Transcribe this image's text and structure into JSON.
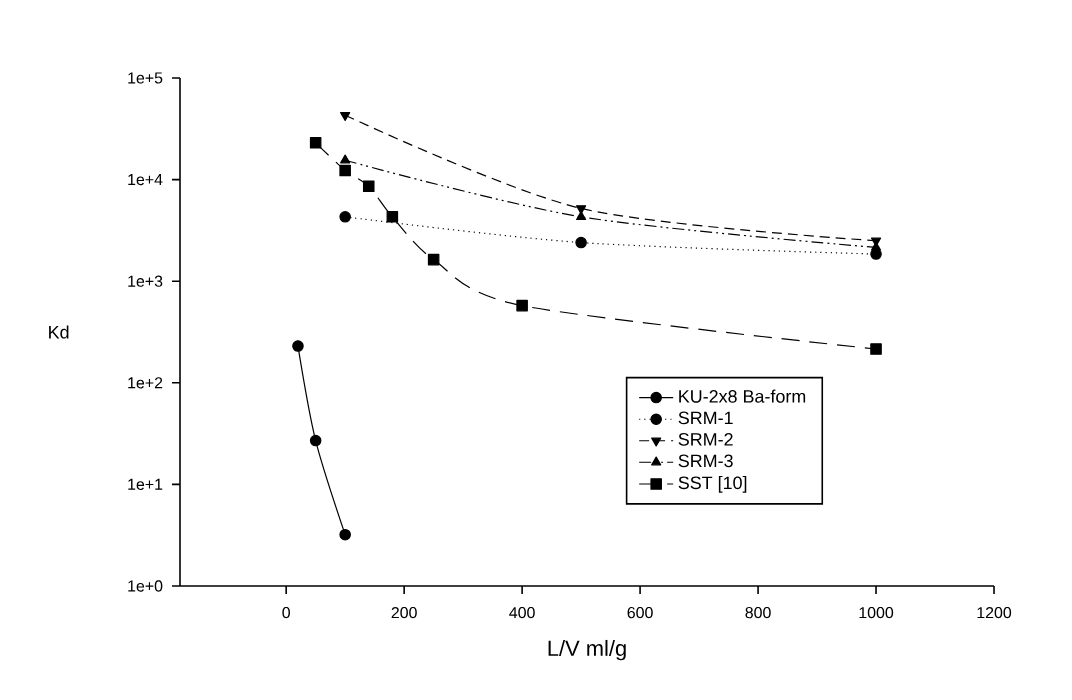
{
  "chart_data": {
    "type": "line",
    "xlabel": "L/V ml/g",
    "ylabel": "Kd",
    "log": "y",
    "xlim": [
      -180,
      1200
    ],
    "ylim": [
      1,
      100000
    ],
    "xticks": [
      0,
      200,
      400,
      600,
      800,
      1000,
      1200
    ],
    "yticks": [
      {
        "value": 1,
        "label": "1e+0"
      },
      {
        "value": 10,
        "label": "1e+1"
      },
      {
        "value": 100,
        "label": "1e+2"
      },
      {
        "value": 1000,
        "label": "1e+3"
      },
      {
        "value": 10000,
        "label": "1e+4"
      },
      {
        "value": 100000,
        "label": "1e+5"
      }
    ],
    "grid": false,
    "legend": "bottom right",
    "series": [
      {
        "name": "KU-2x8 Ba-form",
        "color": "#000000",
        "marker": "circle",
        "line_style": "solid",
        "x": [
          20,
          50,
          100
        ],
        "values": [
          230,
          27,
          3.2
        ]
      },
      {
        "name": "SRM-1",
        "color": "#000000",
        "marker": "circle",
        "line_style": "dotted",
        "x": [
          100,
          500,
          1000
        ],
        "values": [
          4300,
          2400,
          1850
        ]
      },
      {
        "name": "SRM-2",
        "color": "#000000",
        "marker": "triangle down",
        "line_style": "dashed",
        "x": [
          100,
          500,
          1000
        ],
        "values": [
          43000,
          5200,
          2500
        ]
      },
      {
        "name": "SRM-3",
        "color": "#000000",
        "marker": "triangle",
        "line_style": "dashdotdot",
        "x": [
          100,
          500,
          1000
        ],
        "values": [
          15500,
          4300,
          2150
        ]
      },
      {
        "name": "SST [10]",
        "color": "#000000",
        "marker": "square",
        "line_style": "longdashed",
        "x": [
          50,
          100,
          140,
          180,
          250,
          400,
          1000
        ],
        "values": [
          23000,
          12300,
          8600,
          4300,
          1630,
          575,
          215
        ]
      }
    ]
  }
}
